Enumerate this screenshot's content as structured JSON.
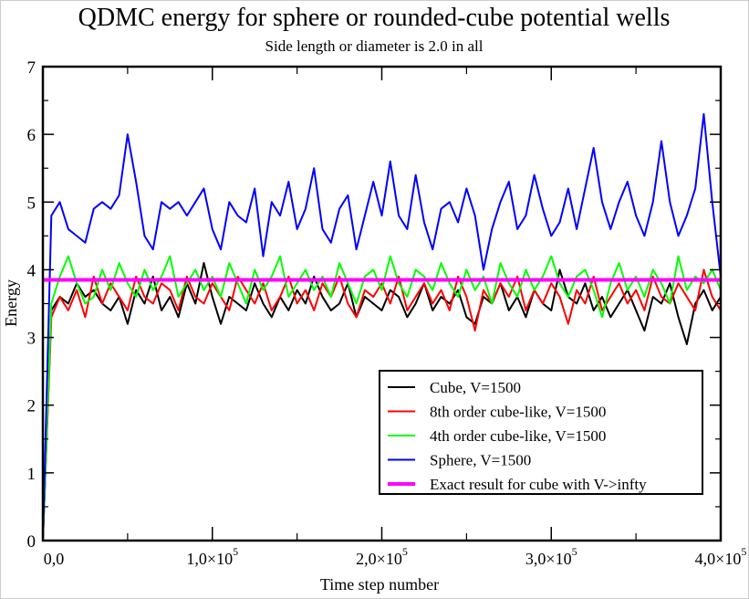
{
  "chart_data": {
    "type": "line",
    "title": "QDMC energy for sphere or rounded-cube potential wells",
    "subtitle": "Side length or diameter is 2.0 in all",
    "xlabel": "Time step number",
    "ylabel": "Energy",
    "xlim": [
      0,
      400000
    ],
    "ylim": [
      0,
      7
    ],
    "x_ticks": [
      {
        "value": 0,
        "mantissa": "0,0",
        "exp": ""
      },
      {
        "value": 100000,
        "mantissa": "1,0×10",
        "exp": "5"
      },
      {
        "value": 200000,
        "mantissa": "2,0×10",
        "exp": "5"
      },
      {
        "value": 300000,
        "mantissa": "3,0×10",
        "exp": "5"
      },
      {
        "value": 400000,
        "mantissa": "4,0×10",
        "exp": "5"
      }
    ],
    "y_ticks": [
      "0",
      "1",
      "2",
      "3",
      "4",
      "5",
      "6",
      "7"
    ],
    "grid": false,
    "legend_placement": "bottom-right",
    "x": [
      0,
      5000,
      10000,
      15000,
      20000,
      25000,
      30000,
      35000,
      40000,
      45000,
      50000,
      55000,
      60000,
      65000,
      70000,
      75000,
      80000,
      85000,
      90000,
      95000,
      100000,
      105000,
      110000,
      115000,
      120000,
      125000,
      130000,
      135000,
      140000,
      145000,
      150000,
      155000,
      160000,
      165000,
      170000,
      175000,
      180000,
      185000,
      190000,
      195000,
      200000,
      205000,
      210000,
      215000,
      220000,
      225000,
      230000,
      235000,
      240000,
      245000,
      250000,
      255000,
      260000,
      265000,
      270000,
      275000,
      280000,
      285000,
      290000,
      295000,
      300000,
      305000,
      310000,
      315000,
      320000,
      325000,
      330000,
      335000,
      340000,
      345000,
      350000,
      355000,
      360000,
      365000,
      370000,
      375000,
      380000,
      385000,
      390000,
      395000,
      400000
    ],
    "series": [
      {
        "name": "Cube, V=1500",
        "color": "#000000",
        "values": [
          0,
          3.4,
          3.6,
          3.5,
          3.8,
          3.6,
          3.7,
          3.5,
          3.4,
          3.6,
          3.2,
          3.7,
          3.5,
          3.9,
          3.4,
          3.6,
          3.3,
          3.8,
          3.5,
          4.1,
          3.6,
          3.2,
          3.6,
          3.5,
          3.4,
          3.8,
          3.5,
          3.3,
          3.6,
          3.4,
          3.7,
          3.5,
          3.9,
          3.6,
          3.4,
          3.5,
          3.8,
          3.3,
          3.6,
          3.5,
          3.4,
          3.7,
          3.6,
          3.3,
          3.5,
          3.8,
          3.4,
          3.6,
          3.5,
          3.7,
          3.3,
          3.2,
          3.6,
          3.5,
          3.8,
          3.4,
          3.6,
          3.3,
          3.7,
          3.5,
          3.4,
          4.0,
          3.6,
          3.5,
          3.8,
          3.4,
          3.6,
          3.3,
          3.5,
          3.7,
          3.4,
          3.1,
          3.6,
          3.5,
          3.8,
          3.3,
          2.9,
          3.5,
          3.7,
          3.4,
          3.6
        ]
      },
      {
        "name": "8th order cube-like, V=1500",
        "color": "#ff0000",
        "values": [
          0,
          3.3,
          3.6,
          3.4,
          3.7,
          3.3,
          3.9,
          3.5,
          3.8,
          3.6,
          3.4,
          3.9,
          3.6,
          3.5,
          3.8,
          3.7,
          3.4,
          3.9,
          3.6,
          3.5,
          3.8,
          3.6,
          3.4,
          3.9,
          3.7,
          3.5,
          3.8,
          3.4,
          3.6,
          3.9,
          3.5,
          3.7,
          3.4,
          3.8,
          3.6,
          3.9,
          3.5,
          3.3,
          3.7,
          3.6,
          3.8,
          3.5,
          3.9,
          3.4,
          3.6,
          3.8,
          3.5,
          3.7,
          3.4,
          3.9,
          3.6,
          3.1,
          3.7,
          3.5,
          3.8,
          3.6,
          3.9,
          3.4,
          3.7,
          3.5,
          3.8,
          3.6,
          3.2,
          3.7,
          3.5,
          3.9,
          3.4,
          3.6,
          3.8,
          3.5,
          3.7,
          3.4,
          3.9,
          3.6,
          3.5,
          3.8,
          3.6,
          3.4,
          4.0,
          3.6,
          3.4
        ]
      },
      {
        "name": "4th order cube-like, V=1500",
        "color": "#00ff00",
        "values": [
          0,
          3.5,
          3.9,
          4.2,
          3.8,
          3.5,
          3.6,
          4.0,
          3.7,
          4.1,
          3.8,
          3.6,
          4.0,
          3.7,
          3.9,
          4.2,
          3.6,
          3.8,
          4.0,
          3.7,
          3.9,
          3.6,
          4.1,
          3.8,
          3.5,
          4.0,
          3.7,
          3.9,
          4.2,
          3.6,
          3.8,
          4.0,
          3.7,
          3.9,
          3.6,
          4.1,
          3.8,
          3.5,
          3.9,
          4.0,
          3.7,
          4.2,
          3.8,
          3.6,
          4.0,
          3.9,
          3.7,
          4.1,
          3.8,
          3.6,
          4.0,
          3.7,
          3.9,
          3.5,
          4.1,
          3.8,
          3.6,
          4.0,
          3.7,
          3.9,
          4.2,
          3.8,
          3.6,
          3.9,
          4.0,
          3.7,
          3.3,
          3.8,
          4.1,
          3.7,
          3.9,
          3.6,
          4.0,
          3.8,
          3.5,
          4.2,
          3.7,
          3.9,
          3.8,
          4.0,
          3.7
        ]
      },
      {
        "name": "Sphere, V=1500",
        "color": "#0000ff",
        "values": [
          0,
          4.8,
          5.0,
          4.6,
          4.5,
          4.4,
          4.9,
          5.0,
          4.9,
          5.1,
          6.0,
          5.3,
          4.5,
          4.3,
          5.0,
          4.9,
          5.0,
          4.8,
          5.0,
          5.2,
          4.6,
          4.3,
          5.0,
          4.8,
          4.7,
          5.2,
          4.2,
          5.0,
          4.8,
          5.3,
          4.6,
          4.9,
          5.5,
          4.6,
          4.4,
          4.9,
          5.1,
          4.3,
          4.8,
          5.3,
          4.8,
          5.6,
          4.8,
          4.6,
          5.4,
          4.7,
          4.3,
          4.9,
          5.0,
          4.7,
          5.2,
          4.8,
          4.0,
          4.6,
          5.0,
          5.3,
          4.6,
          4.8,
          5.4,
          4.9,
          4.5,
          4.7,
          5.2,
          4.6,
          5.2,
          5.8,
          5.0,
          4.6,
          5.0,
          5.3,
          4.8,
          4.5,
          5.0,
          5.9,
          5.0,
          4.5,
          4.8,
          5.2,
          6.3,
          5.0,
          3.9
        ]
      },
      {
        "name": "Exact result for cube with V->infty",
        "color": "#ff00ff",
        "constant": 3.85
      }
    ]
  }
}
